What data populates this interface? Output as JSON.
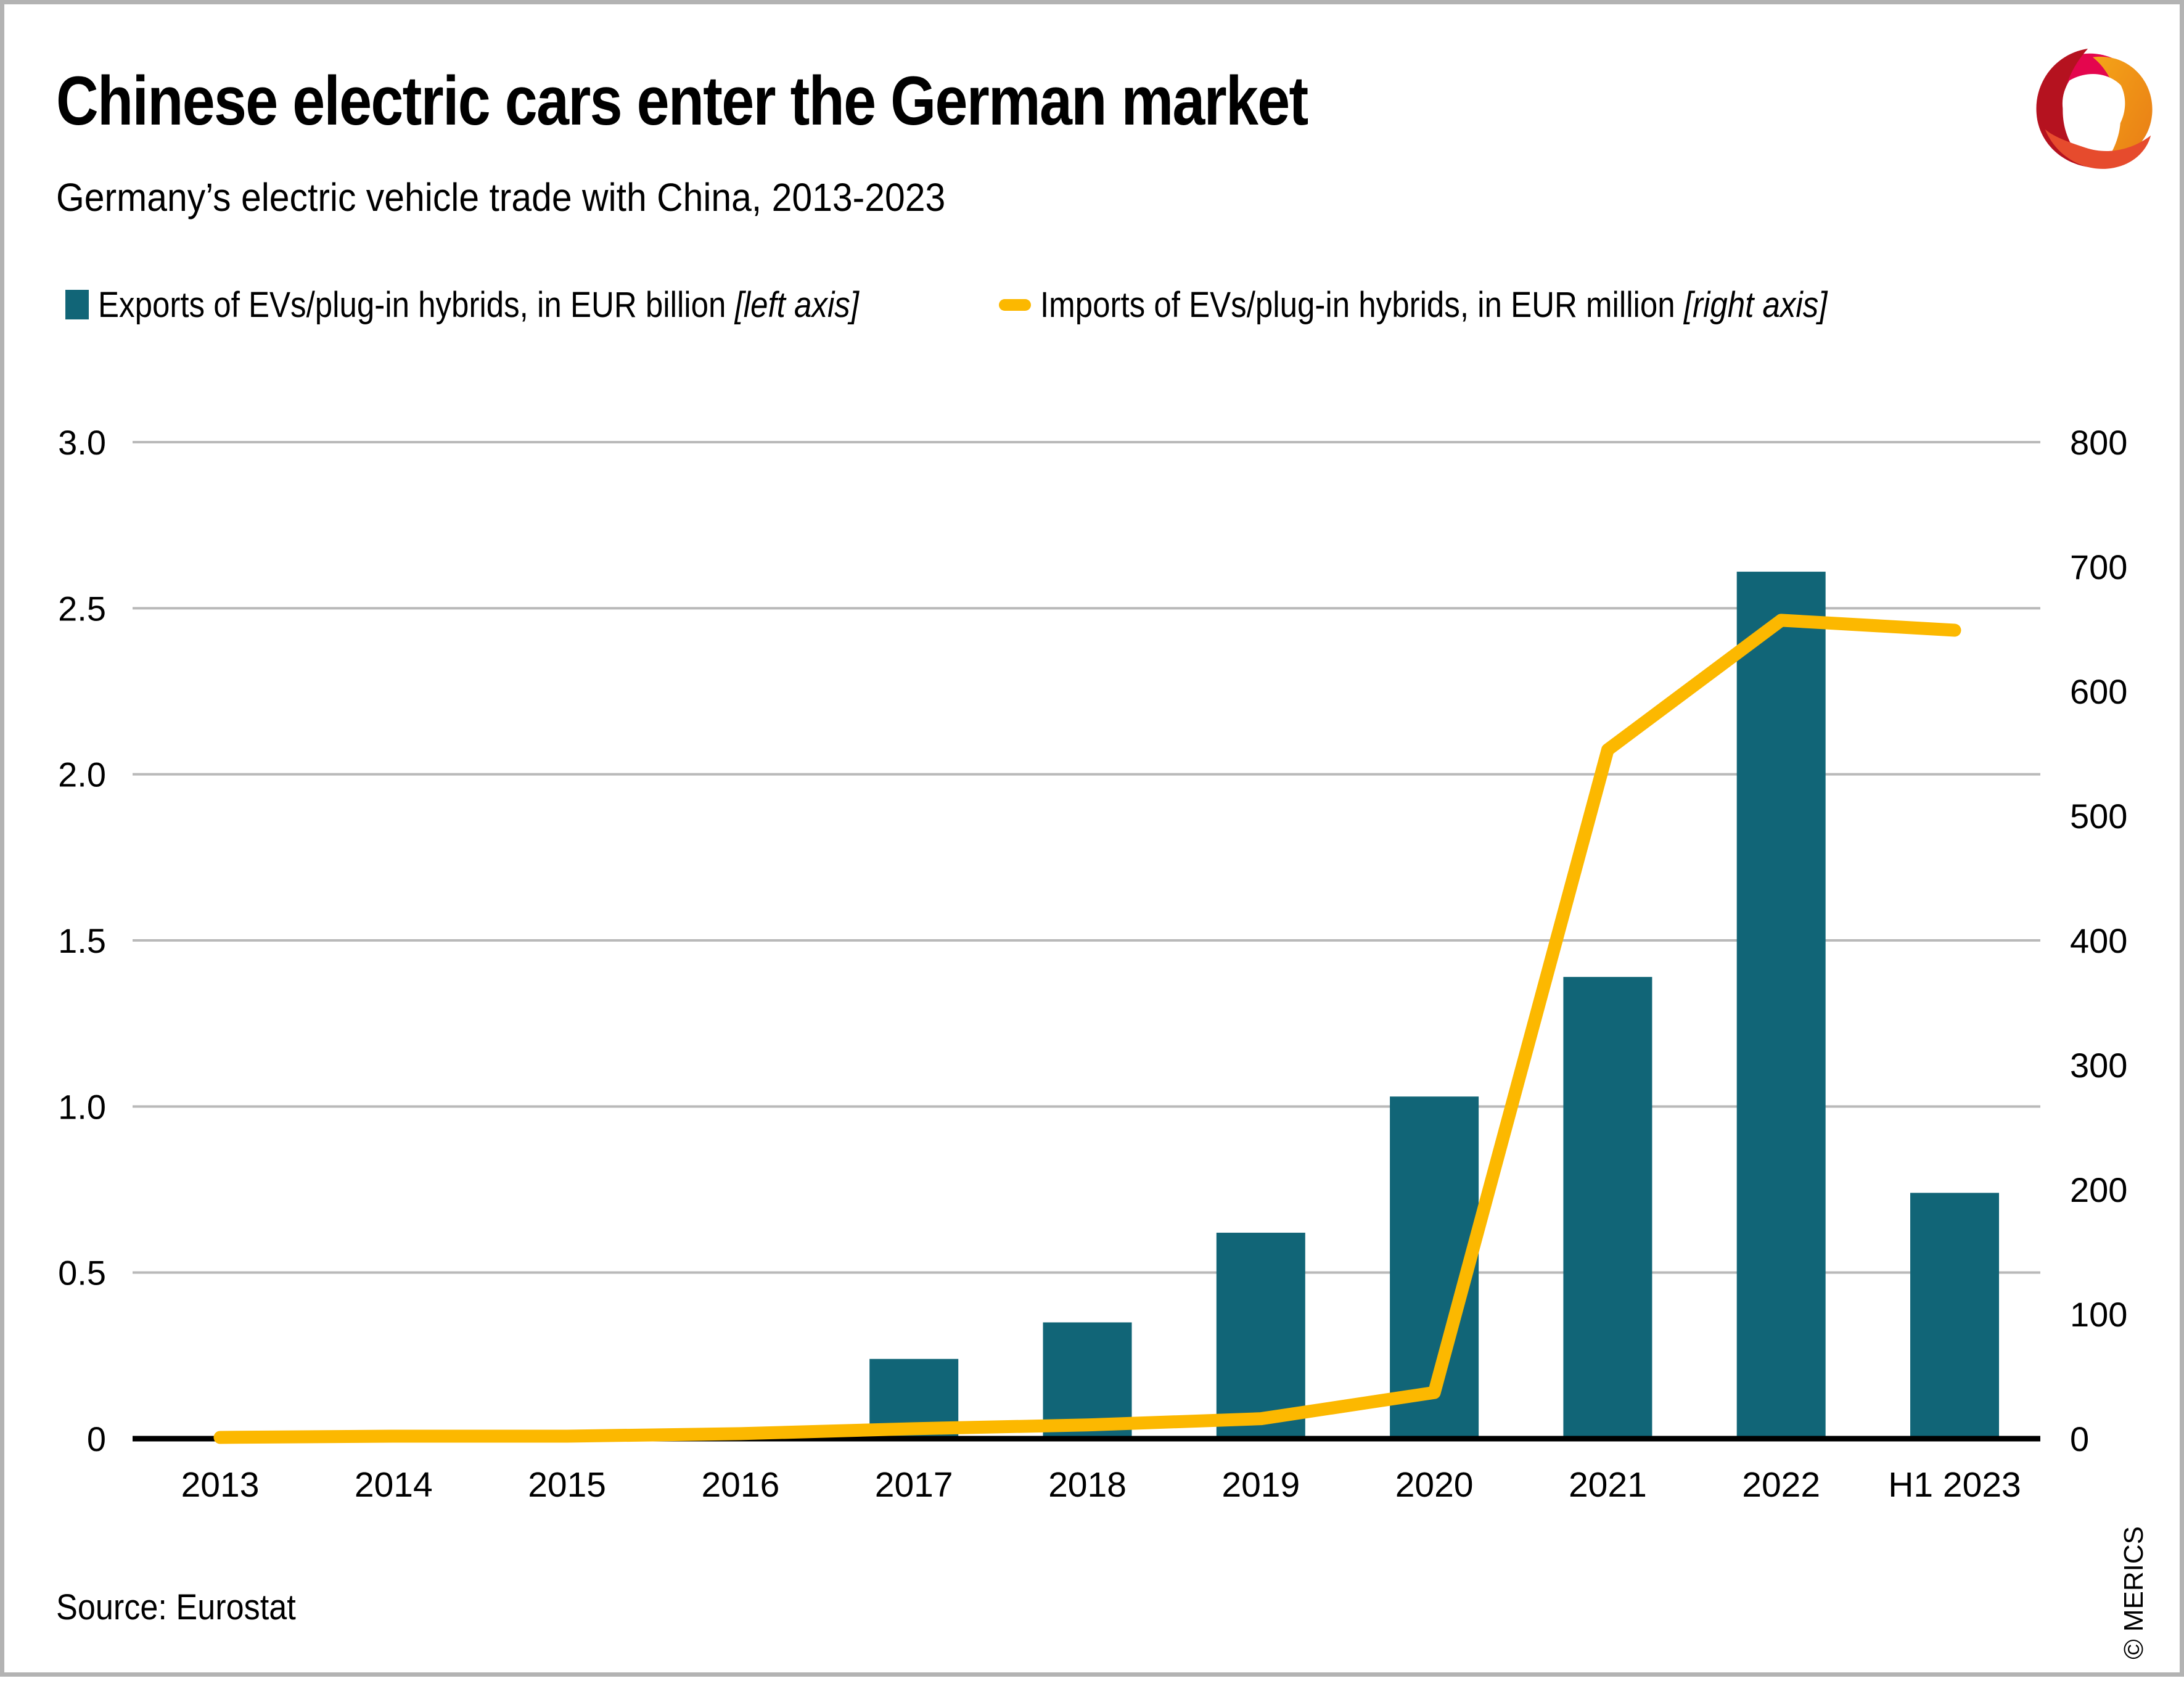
{
  "header": {
    "title": "Chinese electric cars enter the German market",
    "subtitle": "Germany’s electric vehicle trade with China, 2013-2023"
  },
  "legend": [
    {
      "label": "Exports of EVs/plug-in hybrids, in EUR billion",
      "axis_note": "[left axis]",
      "marker": "square",
      "color": "#116577"
    },
    {
      "label": "Imports of EVs/plug-in hybrids, in EUR million",
      "axis_note": "[right axis]",
      "marker": "line",
      "color": "#fcb800"
    }
  ],
  "footer": {
    "source": "Source: Eurostat",
    "copyright": "© MERICS"
  },
  "colors": {
    "bar": "#116577",
    "line": "#fcb800",
    "gridline": "#b9b9b9",
    "axis": "#000000",
    "frame": "#b3b3b3",
    "logo_dark_red": "#b5121f",
    "logo_pink": "#e4064e",
    "logo_orange": "#f39a12",
    "logo_red_orange": "#e64b2d"
  },
  "chart_data": {
    "type": "bar",
    "title": "Chinese electric cars enter the German market",
    "subtitle": "Germany’s electric vehicle trade with China, 2013-2023",
    "categories": [
      "2013",
      "2014",
      "2015",
      "2016",
      "2017",
      "2018",
      "2019",
      "2020",
      "2021",
      "2022",
      "H1 2023"
    ],
    "series": [
      {
        "name": "Exports of EVs/plug-in hybrids, in EUR billion",
        "type": "bar",
        "axis": "left",
        "color": "#116577",
        "values": [
          0,
          0,
          0,
          0,
          0.24,
          0.35,
          0.62,
          1.03,
          1.39,
          2.61,
          0.74
        ]
      },
      {
        "name": "Imports of EVs/plug-in hybrids, in EUR million",
        "type": "line",
        "axis": "right",
        "color": "#fcb800",
        "values": [
          1,
          2,
          2,
          4,
          8,
          11,
          16,
          37,
          553,
          657,
          649
        ]
      }
    ],
    "left_axis": {
      "min": 0,
      "max": 3,
      "ticks": [
        0,
        0.5,
        1.0,
        1.5,
        2.0,
        2.5,
        3.0
      ],
      "tick_labels": [
        "0",
        "0.5",
        "1.0",
        "1.5",
        "2.0",
        "2.5",
        "3.0"
      ]
    },
    "right_axis": {
      "min": 0,
      "max": 800,
      "ticks": [
        0,
        100,
        200,
        300,
        400,
        500,
        600,
        700,
        800
      ]
    },
    "grid": "horizontal",
    "legend_position": "top-left"
  }
}
